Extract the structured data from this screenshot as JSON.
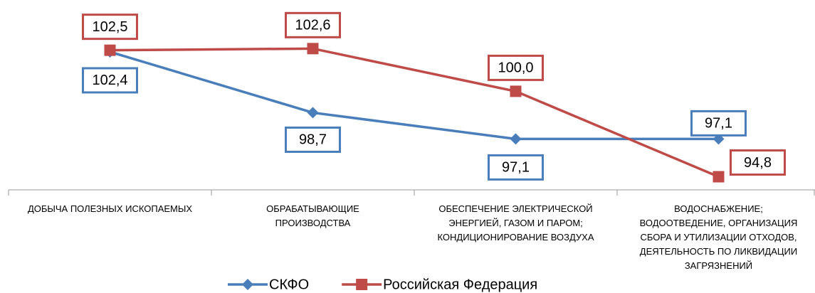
{
  "chart_data": {
    "type": "line",
    "categories": [
      "ДОБЫЧА ПОЛЕЗНЫХ ИСКОПАЕМЫХ",
      "ОБРАБАТЫВАЮЩИЕ\nПРОИЗВОДСТВА",
      "ОБЕСПЕЧЕНИЕ ЭЛЕКТРИЧЕСКОЙ\nЭНЕРГИЕЙ, ГАЗОМ И ПАРОМ;\nКОНДИЦИОНИРОВАНИЕ ВОЗДУХА",
      "ВОДОСНАБЖЕНИЕ;\nВОДООТВЕДЕНИЕ, ОРГАНИЗАЦИЯ\nСБОРА И УТИЛИЗАЦИИ ОТХОДОВ,\nДЕЯТЕЛЬНОСТЬ ПО ЛИКВИДАЦИИ\nЗАГРЯЗНЕНИЙ"
    ],
    "series": [
      {
        "name": "СКФО",
        "color": "#4a7ebb",
        "marker": "diamond",
        "values": [
          102.4,
          98.7,
          97.1,
          97.1
        ],
        "value_labels": [
          "102,4",
          "98,7",
          "97,1",
          "97,1"
        ]
      },
      {
        "name": "Российская Федерация",
        "color": "#be4b48",
        "marker": "square",
        "values": [
          102.5,
          102.6,
          100.0,
          94.8
        ],
        "value_labels": [
          "102,5",
          "102,6",
          "100,0",
          "94,8"
        ]
      }
    ],
    "ylim": [
      94,
      104
    ],
    "legend": "bottom"
  }
}
